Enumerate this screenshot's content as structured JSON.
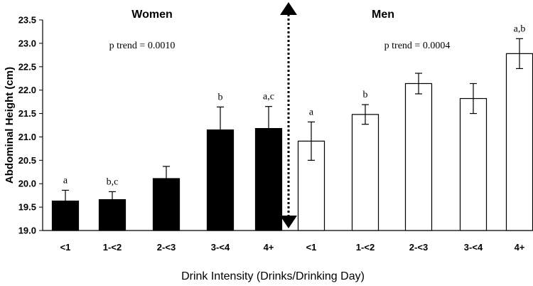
{
  "chart_data": {
    "type": "bar",
    "xlabel": "Drink Intensity (Drinks/Drinking Day)",
    "ylabel": "Abdominal Height (cm)",
    "ylim": [
      19.0,
      23.5
    ],
    "yticks": [
      "19.0",
      "19.5",
      "20.0",
      "20.5",
      "21.0",
      "21.5",
      "22.0",
      "22.5",
      "23.0",
      "23.5"
    ],
    "grid": false,
    "groups": [
      {
        "name": "Women",
        "fill": "#000000",
        "p_trend": "p trend = 0.0010",
        "categories": [
          "<1",
          "1-<2",
          "2-<3",
          "3-<4",
          "4+"
        ],
        "values": [
          19.63,
          19.66,
          20.11,
          21.15,
          21.18
        ],
        "errors": [
          0.23,
          0.17,
          0.26,
          0.49,
          0.47
        ],
        "labels": [
          "a",
          "b,c",
          "",
          "b",
          "a,c"
        ]
      },
      {
        "name": "Men",
        "fill": "#ffffff",
        "p_trend": "p trend = 0.0004",
        "categories": [
          "<1",
          "1-<2",
          "2-<3",
          "3-<4",
          "4+"
        ],
        "values": [
          20.91,
          21.48,
          22.14,
          21.82,
          22.78
        ],
        "errors": [
          0.41,
          0.21,
          0.22,
          0.32,
          0.32
        ],
        "labels": [
          "a",
          "b",
          "",
          "",
          "a,b"
        ]
      }
    ]
  }
}
